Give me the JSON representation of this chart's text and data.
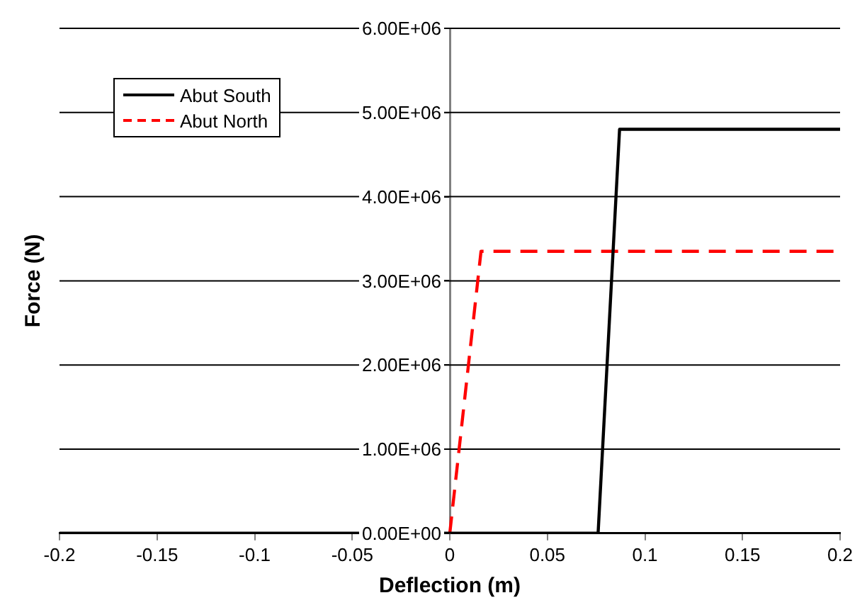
{
  "chart_data": {
    "type": "line",
    "xlabel": "Deflection (m)",
    "ylabel": "Force (N)",
    "xlim": [
      -0.2,
      0.2
    ],
    "xticks": [
      -0.2,
      -0.15,
      -0.1,
      -0.05,
      0,
      0.05,
      0.1,
      0.15,
      0.2
    ],
    "ylim": [
      0,
      6000000
    ],
    "yticks": [
      {
        "value": 0,
        "label": "0.00E+00"
      },
      {
        "value": 1000000,
        "label": "1.00E+06"
      },
      {
        "value": 2000000,
        "label": "2.00E+06"
      },
      {
        "value": 3000000,
        "label": "3.00E+06"
      },
      {
        "value": 4000000,
        "label": "4.00E+06"
      },
      {
        "value": 5000000,
        "label": "5.00E+06"
      },
      {
        "value": 6000000,
        "label": "6.00E+06"
      }
    ],
    "grid": "y",
    "legend": "top left",
    "marker": "none",
    "series": [
      {
        "name": "Abut South",
        "color": "#000000",
        "line_style": "solid",
        "x": [
          -0.2,
          0.076,
          0.087,
          0.2
        ],
        "values": [
          0,
          0,
          4800000,
          4800000
        ]
      },
      {
        "name": "Abut North",
        "color": "#ff0000",
        "line_style": "dashed",
        "x": [
          0,
          0.016,
          0.2
        ],
        "values": [
          0,
          3350000,
          3350000
        ]
      }
    ]
  }
}
